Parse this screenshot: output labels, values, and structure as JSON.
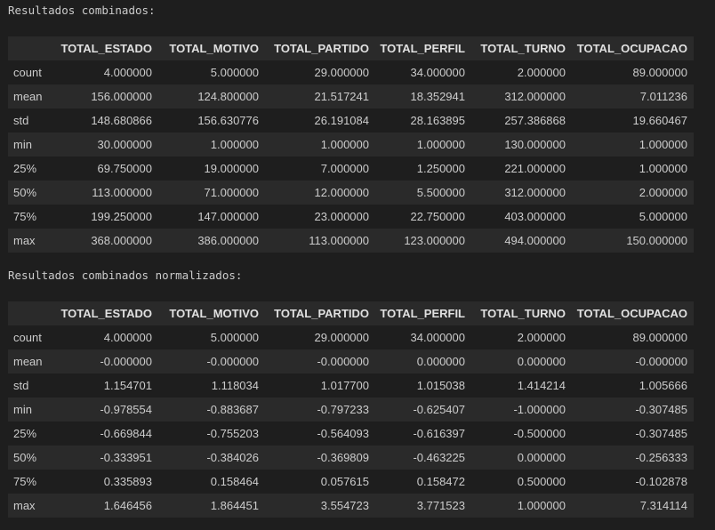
{
  "outputs": [
    {
      "caption": "Resultados combinados:",
      "columns": [
        "",
        "TOTAL_ESTADO",
        "TOTAL_MOTIVO",
        "TOTAL_PARTIDO",
        "TOTAL_PERFIL",
        "TOTAL_TURNO",
        "TOTAL_OCUPACAO"
      ],
      "rows": [
        [
          "count",
          "4.000000",
          "5.000000",
          "29.000000",
          "34.000000",
          "2.000000",
          "89.000000"
        ],
        [
          "mean",
          "156.000000",
          "124.800000",
          "21.517241",
          "18.352941",
          "312.000000",
          "7.011236"
        ],
        [
          "std",
          "148.680866",
          "156.630776",
          "26.191084",
          "28.163895",
          "257.386868",
          "19.660467"
        ],
        [
          "min",
          "30.000000",
          "1.000000",
          "1.000000",
          "1.000000",
          "130.000000",
          "1.000000"
        ],
        [
          "25%",
          "69.750000",
          "19.000000",
          "7.000000",
          "1.250000",
          "221.000000",
          "1.000000"
        ],
        [
          "50%",
          "113.000000",
          "71.000000",
          "12.000000",
          "5.500000",
          "312.000000",
          "2.000000"
        ],
        [
          "75%",
          "199.250000",
          "147.000000",
          "23.000000",
          "22.750000",
          "403.000000",
          "5.000000"
        ],
        [
          "max",
          "368.000000",
          "386.000000",
          "113.000000",
          "123.000000",
          "494.000000",
          "150.000000"
        ]
      ]
    },
    {
      "caption": "Resultados combinados normalizados:",
      "columns": [
        "",
        "TOTAL_ESTADO",
        "TOTAL_MOTIVO",
        "TOTAL_PARTIDO",
        "TOTAL_PERFIL",
        "TOTAL_TURNO",
        "TOTAL_OCUPACAO"
      ],
      "rows": [
        [
          "count",
          "4.000000",
          "5.000000",
          "29.000000",
          "34.000000",
          "2.000000",
          "89.000000"
        ],
        [
          "mean",
          "-0.000000",
          "-0.000000",
          "-0.000000",
          "0.000000",
          "0.000000",
          "-0.000000"
        ],
        [
          "std",
          "1.154701",
          "1.118034",
          "1.017700",
          "1.015038",
          "1.414214",
          "1.005666"
        ],
        [
          "min",
          "-0.978554",
          "-0.883687",
          "-0.797233",
          "-0.625407",
          "-1.000000",
          "-0.307485"
        ],
        [
          "25%",
          "-0.669844",
          "-0.755203",
          "-0.564093",
          "-0.616397",
          "-0.500000",
          "-0.307485"
        ],
        [
          "50%",
          "-0.333951",
          "-0.384026",
          "-0.369809",
          "-0.463225",
          "0.000000",
          "-0.256333"
        ],
        [
          "75%",
          "0.335893",
          "0.158464",
          "0.057615",
          "0.158472",
          "0.500000",
          "-0.102878"
        ],
        [
          "max",
          "1.646456",
          "1.864451",
          "3.554723",
          "3.771523",
          "1.000000",
          "7.314114"
        ]
      ]
    }
  ]
}
